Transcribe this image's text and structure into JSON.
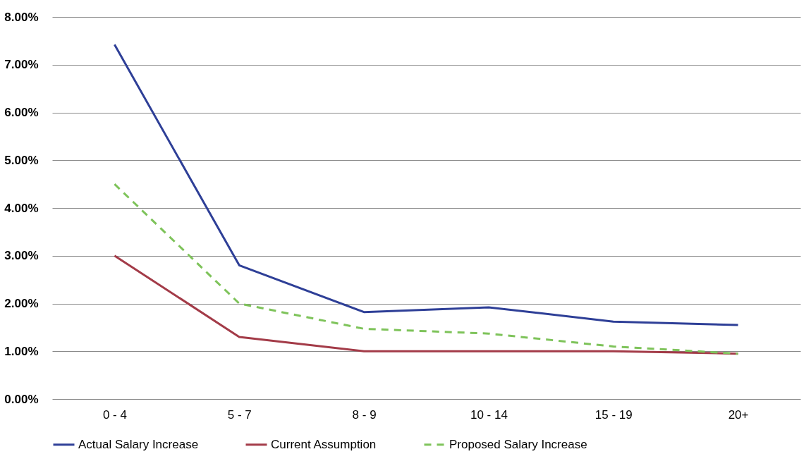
{
  "chart_data": {
    "type": "line",
    "categories": [
      "0 - 4",
      "5 - 7",
      "8 - 9",
      "10 - 14",
      "15 - 19",
      "20+"
    ],
    "series": [
      {
        "name": "Actual Salary Increase",
        "color": "#2e3f97",
        "line_style": "solid",
        "values": [
          7.42,
          2.8,
          1.82,
          1.92,
          1.62,
          1.55
        ]
      },
      {
        "name": "Current Assumption",
        "color": "#a33b48",
        "line_style": "solid",
        "values": [
          3.0,
          1.3,
          1.0,
          1.0,
          1.0,
          0.95
        ]
      },
      {
        "name": "Proposed Salary Increase",
        "color": "#7ec35a",
        "line_style": "dashed",
        "values": [
          4.5,
          2.0,
          1.47,
          1.37,
          1.1,
          0.95
        ]
      }
    ],
    "ylim": [
      0,
      8
    ],
    "yticks": [
      {
        "value": 0,
        "label": "0.00%"
      },
      {
        "value": 1,
        "label": "1.00%"
      },
      {
        "value": 2,
        "label": "2.00%"
      },
      {
        "value": 3,
        "label": "3.00%"
      },
      {
        "value": 4,
        "label": "4.00%"
      },
      {
        "value": 5,
        "label": "5.00%"
      },
      {
        "value": 6,
        "label": "6.00%"
      },
      {
        "value": 7,
        "label": "7.00%"
      },
      {
        "value": 8,
        "label": "8.00%"
      }
    ],
    "grid": "y",
    "legend": "bottom",
    "marker": "none"
  }
}
